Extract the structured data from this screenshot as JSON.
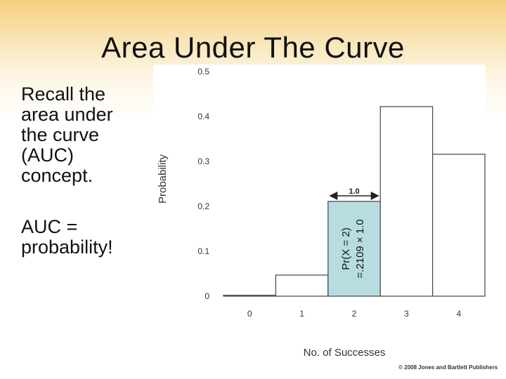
{
  "slide": {
    "title": "Area Under The Curve",
    "bullet1_lines": [
      "Recall the",
      "area under",
      "the curve",
      "(AUC)",
      "concept."
    ],
    "bullet2_lines": [
      "AUC =",
      "probability!"
    ],
    "copyright": "© 2008 Jones and Bartlett Publishers"
  },
  "chart_data": {
    "type": "bar",
    "xlabel": "No. of Successes",
    "ylabel": "Probability",
    "categories": [
      "0",
      "1",
      "2",
      "3",
      "4"
    ],
    "values": [
      0.002,
      0.047,
      0.211,
      0.422,
      0.316
    ],
    "ylim": [
      0,
      0.5
    ],
    "yticks": [
      "0",
      "0.1",
      "0.2",
      "0.3",
      "0.4",
      "0.5"
    ],
    "highlight": {
      "category": "2",
      "color": "#b7dde1",
      "width_label": "1.0",
      "annotation_line1": "Pr(X = 2)",
      "annotation_line2": "=.2109 × 1.0"
    }
  }
}
